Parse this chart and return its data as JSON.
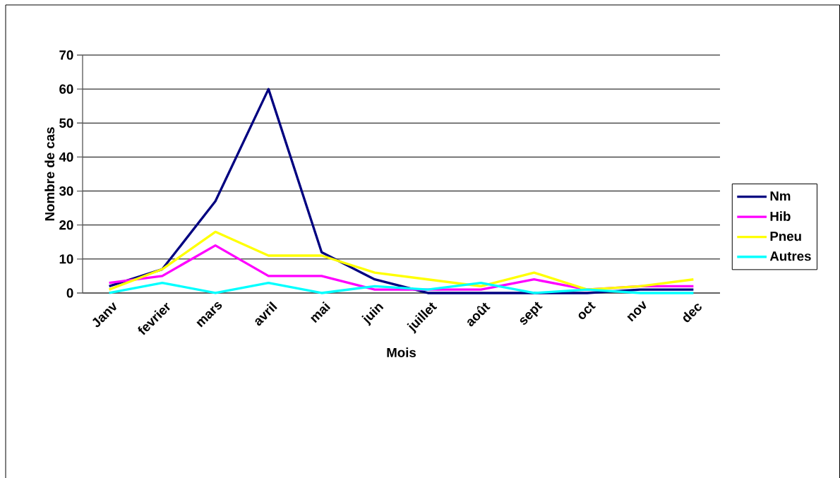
{
  "chart_data": {
    "type": "line",
    "xlabel": "Mois",
    "ylabel": "Nombre de cas",
    "categories": [
      "Janv",
      "fevrier",
      "mars",
      "avril",
      "mai",
      "juin",
      "juillet",
      "août",
      "sept",
      "oct",
      "nov",
      "dec"
    ],
    "series": [
      {
        "name": "Nm",
        "color": "#000080",
        "values": [
          2,
          7,
          27,
          60,
          12,
          4,
          0,
          0,
          0,
          0,
          1,
          1
        ]
      },
      {
        "name": "Hib",
        "color": "#ff00ff",
        "values": [
          3,
          5,
          14,
          5,
          5,
          1,
          1,
          1,
          4,
          1,
          2,
          2
        ]
      },
      {
        "name": "Pneu",
        "color": "#ffff00",
        "values": [
          1,
          7,
          18,
          11,
          11,
          6,
          4,
          2,
          6,
          1,
          2,
          4
        ]
      },
      {
        "name": "Autres",
        "color": "#00ffff",
        "values": [
          0,
          3,
          0,
          3,
          0,
          2,
          1,
          3,
          0,
          1,
          0,
          0
        ]
      }
    ],
    "ylim": [
      0,
      70
    ],
    "yticks": [
      0,
      10,
      20,
      30,
      40,
      50,
      60,
      70
    ],
    "grid": "y",
    "legend": "right",
    "marker": "none",
    "line_style": "solid"
  }
}
